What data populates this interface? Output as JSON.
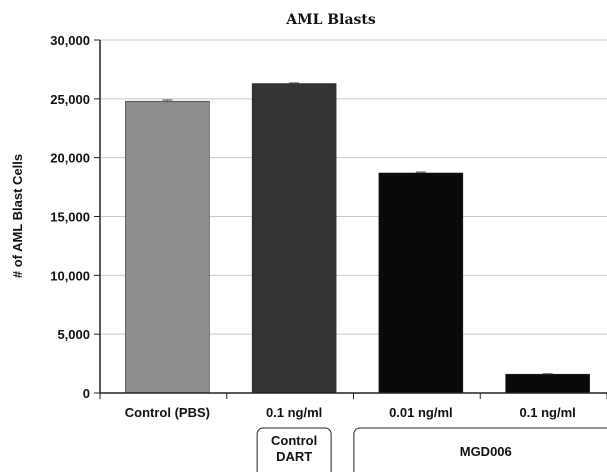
{
  "chart_data": {
    "type": "bar",
    "title": "AML Blasts",
    "ylabel": "# of AML Blast Cells",
    "xlabel": "",
    "ylim": [
      0,
      30000
    ],
    "yticks": [
      "0",
      "5,000",
      "10,000",
      "15,000",
      "20,000",
      "25,000",
      "30,000"
    ],
    "ytick_values": [
      0,
      5000,
      10000,
      15000,
      20000,
      25000,
      30000
    ],
    "grid": true,
    "categories": [
      "Control (PBS)",
      "0.1 ng/ml",
      "0.01 ng/ml",
      "0.1 ng/ml"
    ],
    "values": [
      24800,
      26300,
      18700,
      1600
    ],
    "error": [
      100,
      50,
      80,
      40
    ],
    "bar_colors": [
      "#8c8c8c",
      "#333333",
      "#0a0a0a",
      "#0a0a0a"
    ],
    "groups": [
      {
        "label_lines": [
          "Control",
          "DART"
        ],
        "categories": [
          1
        ]
      },
      {
        "label_lines": [
          "MGD006"
        ],
        "categories": [
          2,
          3
        ]
      }
    ]
  }
}
